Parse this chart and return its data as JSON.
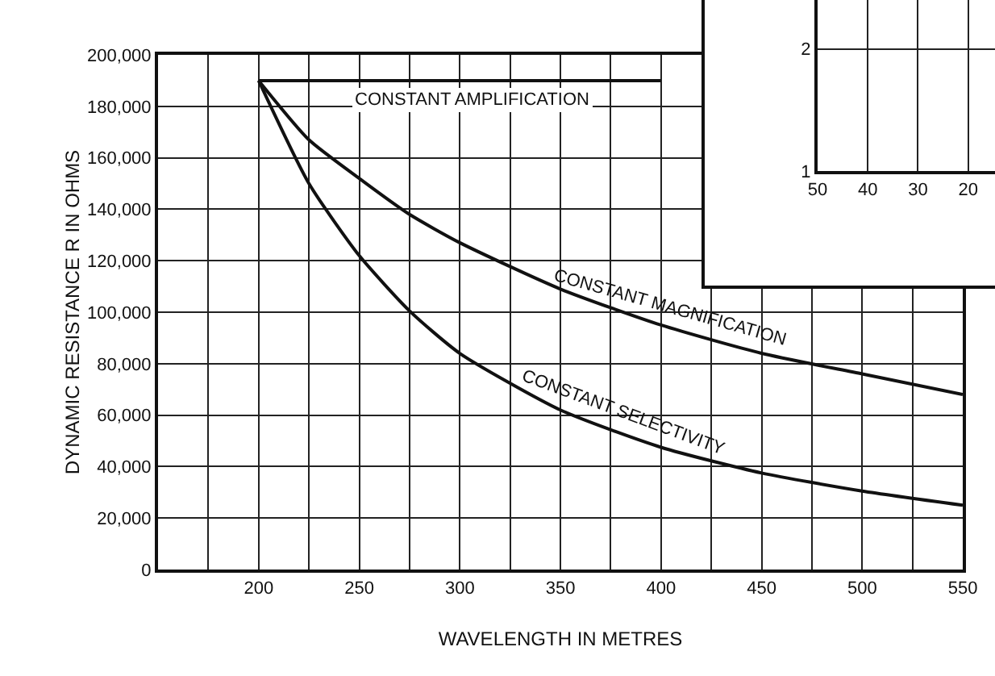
{
  "chart_data": [
    {
      "type": "line",
      "xlabel": "WAVELENGTH IN METRES",
      "ylabel": "DYNAMIC RESISTANCE R IN OHMS",
      "x": [
        200,
        225,
        250,
        275,
        300,
        350,
        400,
        450,
        500,
        550
      ],
      "series": [
        {
          "name": "CONSTANT AMPLIFICATION",
          "color": "#111111",
          "values": [
            190000,
            190000,
            190000,
            190000,
            190000,
            190000,
            190000,
            null,
            null,
            null
          ]
        },
        {
          "name": "CONSTANT MAGNIFICATION",
          "color": "#111111",
          "values": [
            190000,
            167000,
            152000,
            138000,
            127000,
            109000,
            95000,
            84000,
            76000,
            68000
          ]
        },
        {
          "name": "CONSTANT SELECTIVITY",
          "color": "#111111",
          "values": [
            190000,
            150000,
            122000,
            100500,
            84000,
            62000,
            47500,
            37500,
            30500,
            25000
          ]
        }
      ],
      "xlim": [
        150,
        550
      ],
      "xticks": [
        {
          "value": 175,
          "label": null
        },
        200,
        {
          "value": 225,
          "label": null
        },
        250,
        {
          "value": 275,
          "label": null
        },
        300,
        {
          "value": 325,
          "label": null
        },
        350,
        {
          "value": 375,
          "label": null
        },
        400,
        {
          "value": 425,
          "label": null
        },
        450,
        {
          "value": 475,
          "label": null
        },
        500,
        {
          "value": 525,
          "label": null
        },
        550
      ],
      "ylim": [
        0,
        200000
      ],
      "yticks": [
        0,
        {
          "value": 20000,
          "label": "20,000"
        },
        {
          "value": 40000,
          "label": "40,000"
        },
        {
          "value": 60000,
          "label": "60,000"
        },
        {
          "value": 80000,
          "label": "80,000"
        },
        {
          "value": 100000,
          "label": "100,000"
        },
        {
          "value": 120000,
          "label": "120,000"
        },
        {
          "value": 140000,
          "label": "140,000"
        },
        {
          "value": 160000,
          "label": "160,000"
        },
        {
          "value": 180000,
          "label": "180,000"
        },
        {
          "value": 200000,
          "label": "200,000"
        }
      ],
      "grid": true,
      "line_style": "solid"
    },
    {
      "type": "line",
      "xlim": [
        50,
        14
      ],
      "xticks": [
        50,
        40,
        30,
        20
      ],
      "ylim": [
        1,
        2.4
      ],
      "yticks": [
        1,
        2
      ],
      "grid": true
    }
  ]
}
